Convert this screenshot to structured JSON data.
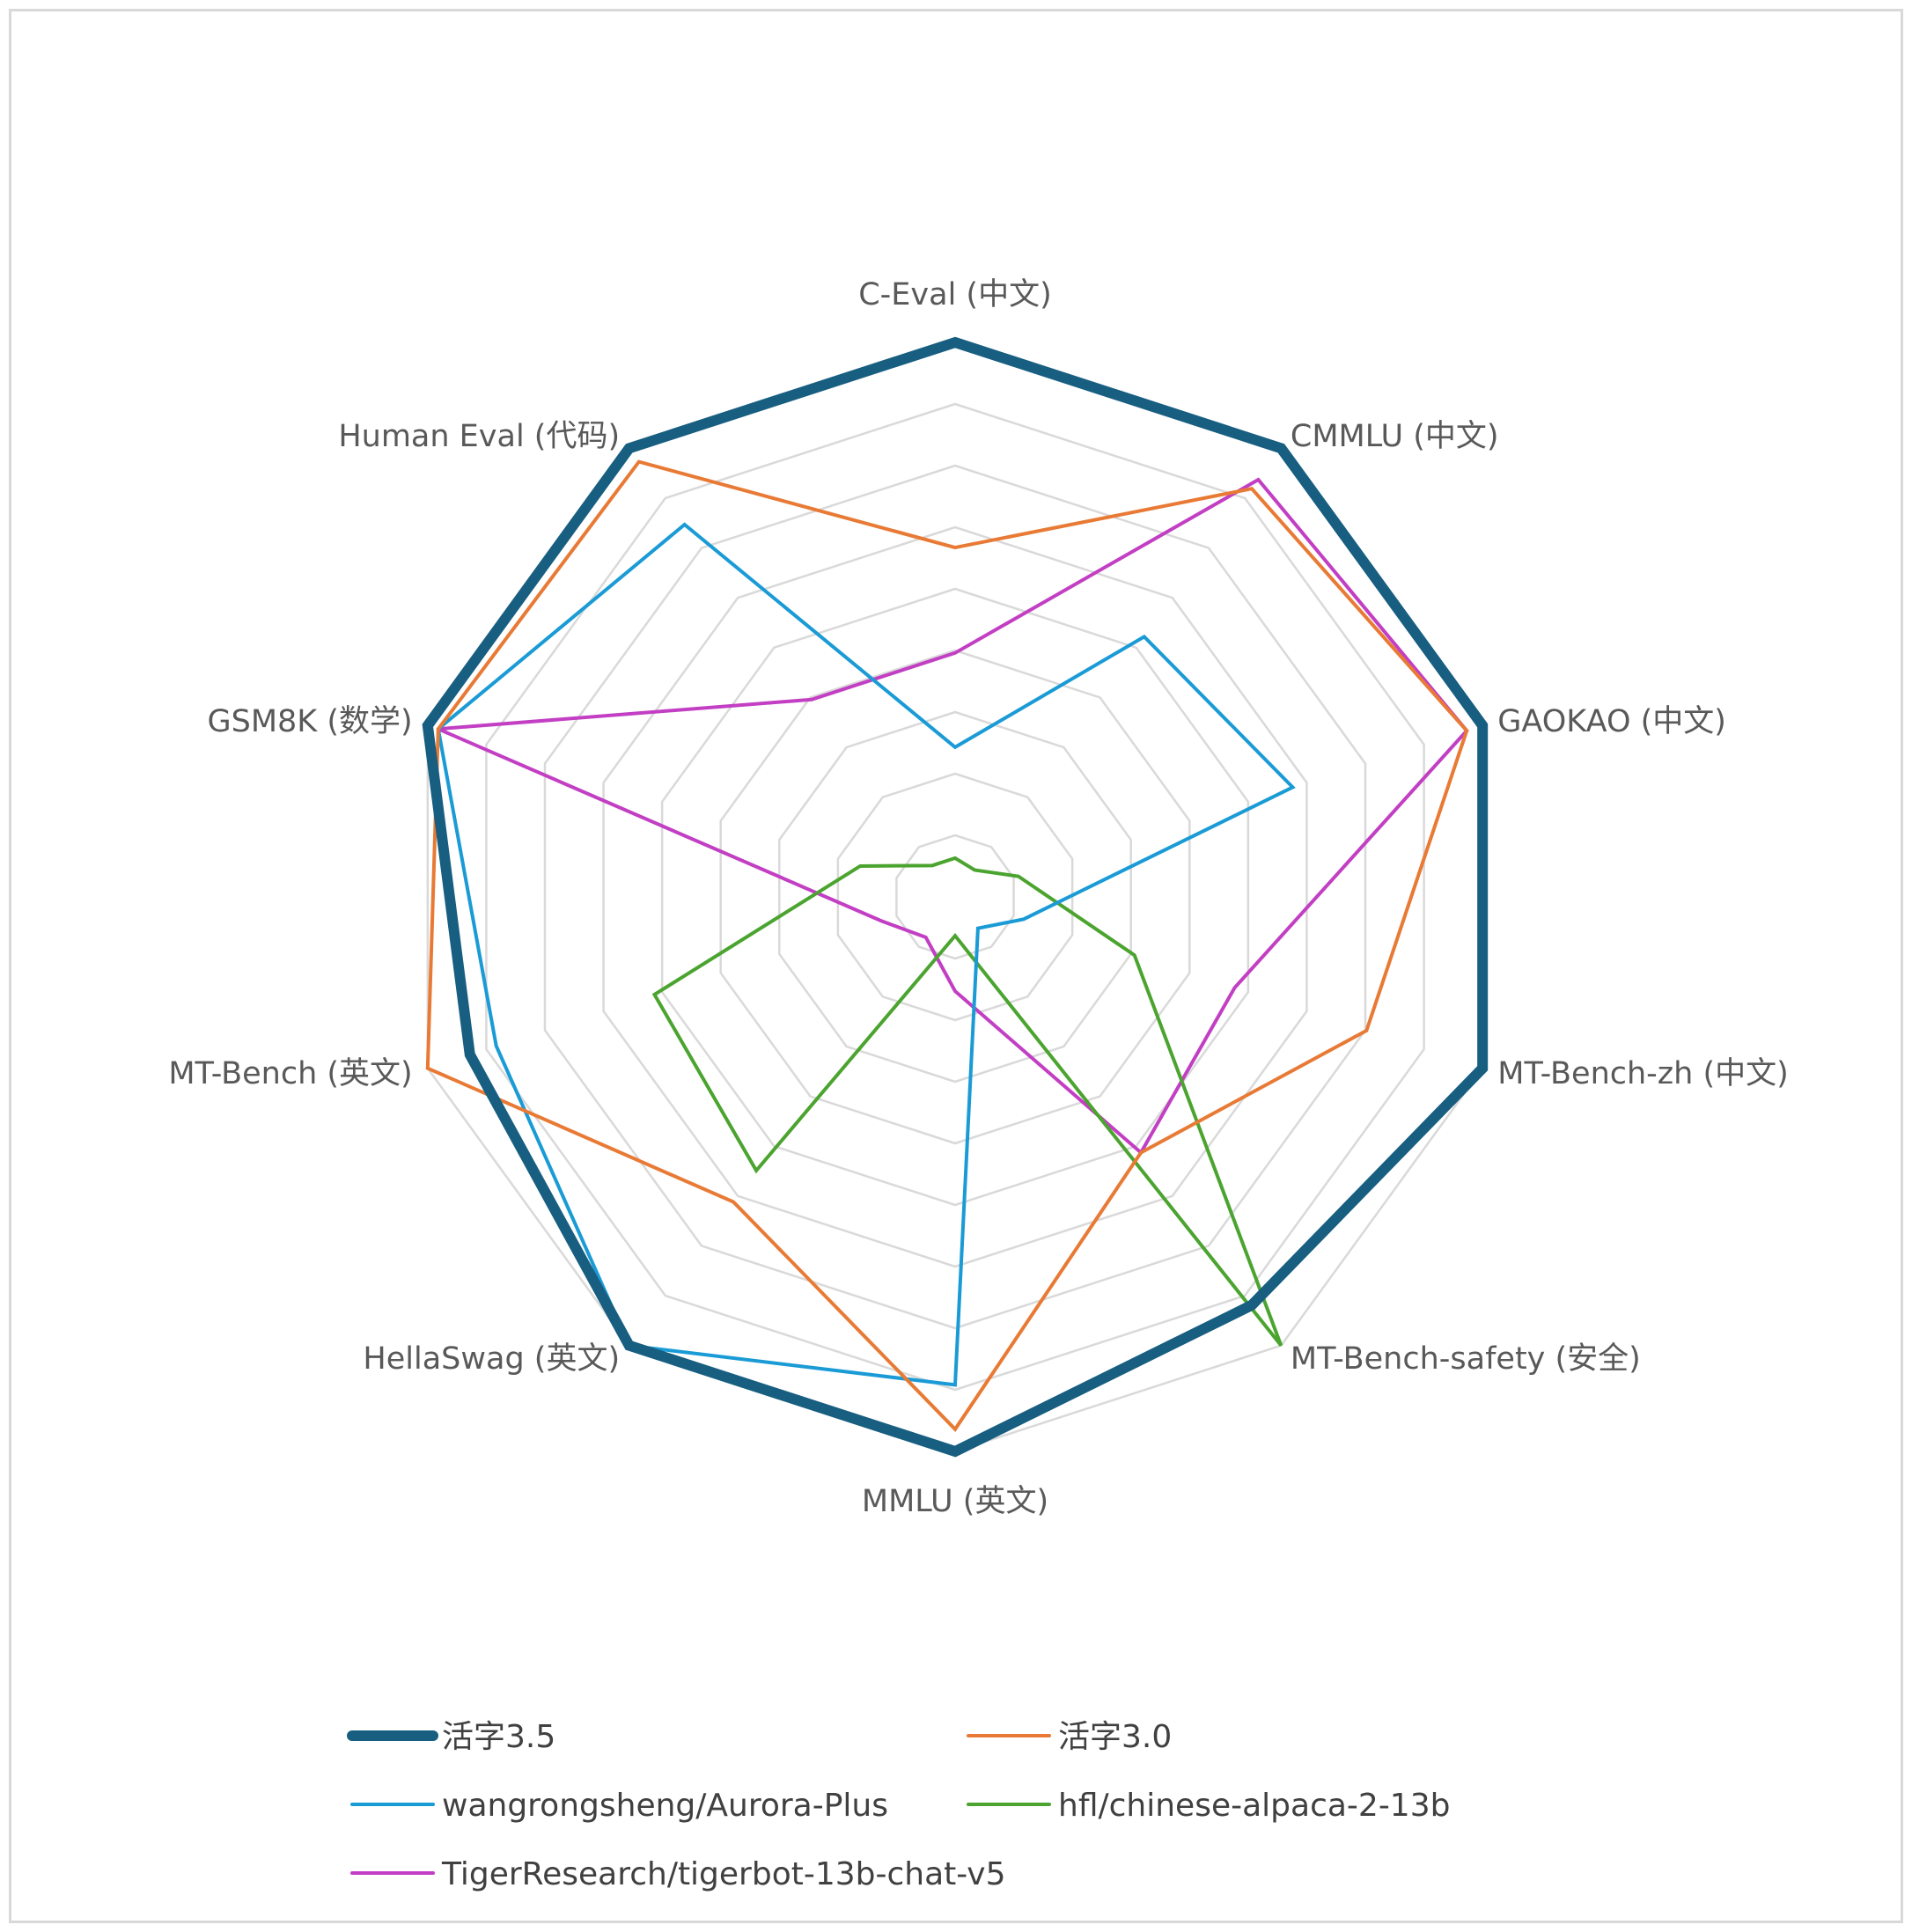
{
  "chart_data": {
    "type": "radar",
    "axes": [
      "C-Eval (中文)",
      "CMMLU (中文)",
      "GAOKAO (中文)",
      "MT-Bench-zh (中文)",
      "MT-Bench-safety (安全)",
      "MMLU (英文)",
      "HellaSwag (英文)",
      "MT-Bench (英文)",
      "GSM8K (数学)",
      "Human Eval (代码)"
    ],
    "rlim": [
      0,
      100
    ],
    "rings": 9,
    "grid": true,
    "legend_position": "bottom",
    "series": [
      {
        "name": "活字3.5",
        "color": "#175e80",
        "line_width": 12,
        "values": [
          100,
          100,
          100,
          100,
          91,
          100,
          100,
          92,
          100,
          100
        ]
      },
      {
        "name": "活字3.0",
        "color": "#e87a35",
        "line_width": 4,
        "values": [
          63,
          91,
          97,
          78,
          57,
          96,
          68,
          100,
          98,
          97
        ]
      },
      {
        "name": "wangrongsheng/Aurora-Plus",
        "color": "#1a9bd6",
        "line_width": 4,
        "values": [
          27,
          58,
          64,
          13,
          7,
          88,
          100,
          87,
          98,
          83
        ]
      },
      {
        "name": "hfl/chinese-alpaca-2-13b",
        "color": "#4ba42f",
        "line_width": 4,
        "values": [
          7,
          6,
          12,
          34,
          100,
          7,
          61,
          57,
          18,
          7
        ]
      },
      {
        "name": "TigerResearch/tigerbot-13b-chat-v5",
        "color": "#c23fc4",
        "line_width": 4,
        "values": [
          44,
          93,
          97,
          53,
          57,
          17,
          9,
          14,
          98,
          44
        ]
      }
    ]
  }
}
